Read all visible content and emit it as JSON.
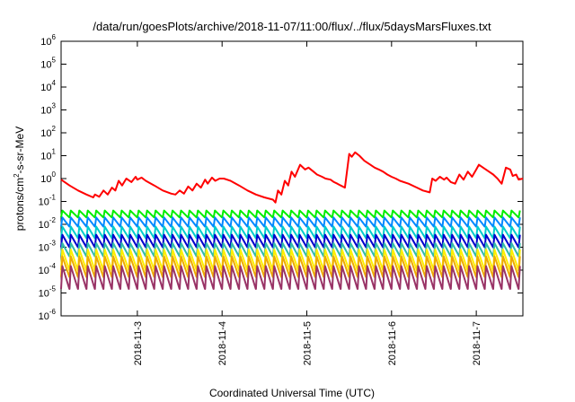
{
  "chart_data": {
    "type": "line",
    "title": "/data/run/goesPlots/archive/2018-11-07/11:00/flux/../flux/5daysMarsFluxes.txt",
    "xlabel": "Coordinated Universal Time (UTC)",
    "ylabel": {
      "prefix": "protons/cm",
      "sup": "2",
      "suffix": "-s-sr-MeV"
    },
    "yscale": "log",
    "ylim": [
      1e-06,
      1000000.0
    ],
    "y_ticks": [
      {
        "base": "10",
        "exp": "6",
        "value": 1000000.0
      },
      {
        "base": "10",
        "exp": "5",
        "value": 100000.0
      },
      {
        "base": "10",
        "exp": "4",
        "value": 10000.0
      },
      {
        "base": "10",
        "exp": "3",
        "value": 1000.0
      },
      {
        "base": "10",
        "exp": "2",
        "value": 100.0
      },
      {
        "base": "10",
        "exp": "1",
        "value": 10.0
      },
      {
        "base": "10",
        "exp": "0",
        "value": 1
      },
      {
        "base": "10",
        "exp": "-1",
        "value": 0.1
      },
      {
        "base": "10",
        "exp": "-2",
        "value": 0.01
      },
      {
        "base": "10",
        "exp": "-3",
        "value": 0.001
      },
      {
        "base": "10",
        "exp": "-4",
        "value": 0.0001
      },
      {
        "base": "10",
        "exp": "-5",
        "value": 1e-05
      },
      {
        "base": "10",
        "exp": "-6",
        "value": 1e-06
      }
    ],
    "x_ticks": [
      {
        "label": "2018-11-3",
        "value": 3.0
      },
      {
        "label": "2018-11-4",
        "value": 4.0
      },
      {
        "label": "2018-11-5",
        "value": 5.0
      },
      {
        "label": "2018-11-6",
        "value": 6.0
      },
      {
        "label": "2018-11-7",
        "value": 7.0
      }
    ],
    "xlim": [
      2.1,
      7.55
    ],
    "grid": false,
    "series": [
      {
        "color": "#ff0000",
        "points": [
          [
            2.1,
            0.9
          ],
          [
            2.2,
            0.5
          ],
          [
            2.3,
            0.3
          ],
          [
            2.4,
            0.2
          ],
          [
            2.48,
            0.15
          ],
          [
            2.5,
            0.2
          ],
          [
            2.55,
            0.16
          ],
          [
            2.6,
            0.3
          ],
          [
            2.65,
            0.2
          ],
          [
            2.7,
            0.4
          ],
          [
            2.74,
            0.3
          ],
          [
            2.78,
            0.8
          ],
          [
            2.82,
            0.5
          ],
          [
            2.87,
            1.0
          ],
          [
            2.93,
            0.7
          ],
          [
            2.98,
            1.2
          ],
          [
            3.0,
            0.9
          ],
          [
            3.05,
            1.1
          ],
          [
            3.1,
            0.8
          ],
          [
            3.2,
            0.5
          ],
          [
            3.3,
            0.3
          ],
          [
            3.4,
            0.22
          ],
          [
            3.45,
            0.2
          ],
          [
            3.5,
            0.3
          ],
          [
            3.55,
            0.22
          ],
          [
            3.6,
            0.45
          ],
          [
            3.65,
            0.3
          ],
          [
            3.7,
            0.6
          ],
          [
            3.75,
            0.4
          ],
          [
            3.8,
            0.9
          ],
          [
            3.83,
            0.6
          ],
          [
            3.88,
            1.1
          ],
          [
            3.92,
            0.8
          ],
          [
            3.97,
            1.0
          ],
          [
            4.02,
            1.0
          ],
          [
            4.1,
            0.8
          ],
          [
            4.2,
            0.5
          ],
          [
            4.3,
            0.3
          ],
          [
            4.4,
            0.2
          ],
          [
            4.5,
            0.15
          ],
          [
            4.6,
            0.12
          ],
          [
            4.63,
            0.09
          ],
          [
            4.66,
            0.3
          ],
          [
            4.7,
            0.2
          ],
          [
            4.74,
            0.8
          ],
          [
            4.78,
            0.5
          ],
          [
            4.82,
            2.0
          ],
          [
            4.86,
            1.2
          ],
          [
            4.92,
            4.0
          ],
          [
            4.98,
            2.5
          ],
          [
            5.02,
            3.0
          ],
          [
            5.08,
            2.0
          ],
          [
            5.12,
            1.5
          ],
          [
            5.18,
            1.2
          ],
          [
            5.22,
            1.0
          ],
          [
            5.28,
            0.9
          ],
          [
            5.32,
            0.7
          ],
          [
            5.36,
            0.6
          ],
          [
            5.4,
            0.5
          ],
          [
            5.45,
            0.4
          ],
          [
            5.5,
            12.0
          ],
          [
            5.53,
            9.0
          ],
          [
            5.57,
            14.0
          ],
          [
            5.62,
            10.0
          ],
          [
            5.68,
            6.0
          ],
          [
            5.75,
            4.0
          ],
          [
            5.8,
            3.0
          ],
          [
            5.85,
            2.5
          ],
          [
            5.9,
            2.0
          ],
          [
            5.95,
            1.5
          ],
          [
            6.0,
            1.2
          ],
          [
            6.05,
            1.0
          ],
          [
            6.1,
            0.8
          ],
          [
            6.2,
            0.6
          ],
          [
            6.3,
            0.4
          ],
          [
            6.37,
            0.3
          ],
          [
            6.45,
            0.25
          ],
          [
            6.48,
            1.0
          ],
          [
            6.52,
            0.8
          ],
          [
            6.57,
            1.2
          ],
          [
            6.62,
            0.9
          ],
          [
            6.65,
            1.1
          ],
          [
            6.7,
            0.7
          ],
          [
            6.75,
            0.6
          ],
          [
            6.8,
            1.5
          ],
          [
            6.85,
            0.9
          ],
          [
            6.9,
            2.0
          ],
          [
            6.95,
            1.2
          ],
          [
            7.0,
            2.5
          ],
          [
            7.03,
            4.0
          ],
          [
            7.08,
            3.0
          ],
          [
            7.15,
            2.0
          ],
          [
            7.2,
            1.5
          ],
          [
            7.25,
            1.0
          ],
          [
            7.3,
            0.6
          ],
          [
            7.35,
            3.0
          ],
          [
            7.4,
            2.5
          ],
          [
            7.43,
            1.3
          ],
          [
            7.47,
            1.5
          ],
          [
            7.5,
            0.9
          ],
          [
            7.55,
            1.0
          ]
        ]
      },
      {
        "color": "#00ee00",
        "peak": 0.04,
        "trough": 0.02
      },
      {
        "color": "#0088ff",
        "peak": 0.02,
        "trough": 0.008
      },
      {
        "color": "#00cccc",
        "peak": 0.008,
        "trough": 0.0025
      },
      {
        "color": "#0000cc",
        "peak": 0.0035,
        "trough": 0.001
      },
      {
        "color": "#33bbaa",
        "peak": 0.0015,
        "trough": 0.0004
      },
      {
        "color": "#ffee00",
        "peak": 0.0008,
        "trough": 0.0001
      },
      {
        "color": "#eeaa00",
        "peak": 0.0004,
        "trough": 5e-05
      },
      {
        "color": "#993366",
        "peak": 0.00015,
        "trough": 1.5e-05
      }
    ],
    "sawtooth_period_days": 0.1
  }
}
